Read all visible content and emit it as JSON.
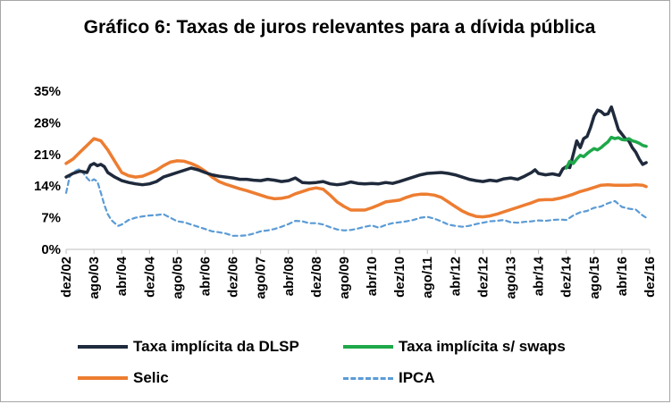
{
  "chart_data": {
    "type": "line",
    "title": "Gráfico 6: Taxas de juros relevantes para a dívida pública",
    "xlabel": "",
    "ylabel": "",
    "ylim": [
      0,
      35
    ],
    "y_ticks": [
      "0%",
      "7%",
      "14%",
      "21%",
      "28%",
      "35%"
    ],
    "y_tick_values": [
      0,
      7,
      14,
      21,
      28,
      35
    ],
    "x_range": [
      0,
      168
    ],
    "x_ticks": [
      {
        "label": "dez/02",
        "m": 0
      },
      {
        "label": "ago/03",
        "m": 8
      },
      {
        "label": "abr/04",
        "m": 16
      },
      {
        "label": "dez/04",
        "m": 24
      },
      {
        "label": "ago/05",
        "m": 32
      },
      {
        "label": "abr/06",
        "m": 40
      },
      {
        "label": "dez/06",
        "m": 48
      },
      {
        "label": "ago/07",
        "m": 56
      },
      {
        "label": "abr/08",
        "m": 64
      },
      {
        "label": "dez/08",
        "m": 72
      },
      {
        "label": "ago/09",
        "m": 80
      },
      {
        "label": "abr/10",
        "m": 88
      },
      {
        "label": "dez/10",
        "m": 96
      },
      {
        "label": "ago/11",
        "m": 104
      },
      {
        "label": "abr/12",
        "m": 112
      },
      {
        "label": "dez/12",
        "m": 120
      },
      {
        "label": "ago/13",
        "m": 128
      },
      {
        "label": "abr/14",
        "m": 136
      },
      {
        "label": "dez/14",
        "m": 144
      },
      {
        "label": "ago/15",
        "m": 152
      },
      {
        "label": "abr/16",
        "m": 160
      },
      {
        "label": "dez/16",
        "m": 168
      }
    ],
    "series": [
      {
        "name": "Taxa implícita da DLSP",
        "color": "#1f2a3c",
        "style": "solid",
        "points": [
          [
            0,
            16.0
          ],
          [
            2,
            16.8
          ],
          [
            4,
            17.3
          ],
          [
            6,
            17.0
          ],
          [
            7,
            18.6
          ],
          [
            8,
            19.0
          ],
          [
            9,
            18.5
          ],
          [
            10,
            18.8
          ],
          [
            11,
            18.3
          ],
          [
            12,
            17.0
          ],
          [
            14,
            16.0
          ],
          [
            16,
            15.2
          ],
          [
            18,
            14.8
          ],
          [
            20,
            14.5
          ],
          [
            22,
            14.3
          ],
          [
            24,
            14.5
          ],
          [
            26,
            15.0
          ],
          [
            28,
            16.0
          ],
          [
            30,
            16.5
          ],
          [
            32,
            17.0
          ],
          [
            34,
            17.5
          ],
          [
            36,
            18.0
          ],
          [
            38,
            17.6
          ],
          [
            40,
            17.0
          ],
          [
            42,
            16.5
          ],
          [
            44,
            16.2
          ],
          [
            46,
            16.0
          ],
          [
            48,
            15.8
          ],
          [
            50,
            15.5
          ],
          [
            52,
            15.5
          ],
          [
            54,
            15.3
          ],
          [
            56,
            15.2
          ],
          [
            58,
            15.5
          ],
          [
            60,
            15.3
          ],
          [
            62,
            15.0
          ],
          [
            64,
            15.2
          ],
          [
            66,
            15.8
          ],
          [
            68,
            14.8
          ],
          [
            70,
            14.7
          ],
          [
            72,
            14.8
          ],
          [
            74,
            15.0
          ],
          [
            76,
            14.5
          ],
          [
            78,
            14.3
          ],
          [
            80,
            14.5
          ],
          [
            82,
            14.9
          ],
          [
            84,
            14.6
          ],
          [
            86,
            14.5
          ],
          [
            88,
            14.6
          ],
          [
            90,
            14.5
          ],
          [
            92,
            14.8
          ],
          [
            94,
            14.6
          ],
          [
            96,
            15.0
          ],
          [
            98,
            15.5
          ],
          [
            100,
            16.0
          ],
          [
            102,
            16.5
          ],
          [
            104,
            16.8
          ],
          [
            106,
            16.9
          ],
          [
            108,
            17.0
          ],
          [
            110,
            16.8
          ],
          [
            112,
            16.5
          ],
          [
            114,
            16.0
          ],
          [
            116,
            15.5
          ],
          [
            118,
            15.2
          ],
          [
            120,
            15.0
          ],
          [
            122,
            15.3
          ],
          [
            124,
            15.1
          ],
          [
            126,
            15.6
          ],
          [
            128,
            15.8
          ],
          [
            130,
            15.5
          ],
          [
            132,
            16.2
          ],
          [
            134,
            17.0
          ],
          [
            135,
            17.6
          ],
          [
            136,
            16.8
          ],
          [
            138,
            16.5
          ],
          [
            140,
            16.7
          ],
          [
            142,
            16.4
          ],
          [
            143,
            17.8
          ],
          [
            144,
            18.3
          ],
          [
            145,
            18.1
          ],
          [
            146,
            21.0
          ],
          [
            147,
            24.0
          ],
          [
            148,
            22.5
          ],
          [
            149,
            24.5
          ],
          [
            150,
            25.0
          ],
          [
            151,
            27.0
          ],
          [
            152,
            29.5
          ],
          [
            153,
            30.8
          ],
          [
            154,
            30.5
          ],
          [
            155,
            29.8
          ],
          [
            156,
            30.0
          ],
          [
            157,
            31.5
          ],
          [
            158,
            29.0
          ],
          [
            159,
            26.5
          ],
          [
            160,
            25.5
          ],
          [
            161,
            24.5
          ],
          [
            162,
            24.0
          ],
          [
            163,
            22.5
          ],
          [
            164,
            21.5
          ],
          [
            165,
            20.0
          ],
          [
            166,
            18.8
          ],
          [
            167,
            19.2
          ]
        ]
      },
      {
        "name": "Taxa implícita s/ swaps",
        "color": "#1ea84a",
        "style": "solid",
        "points": [
          [
            144,
            18.0
          ],
          [
            145,
            19.5
          ],
          [
            146,
            19.0
          ],
          [
            147,
            20.0
          ],
          [
            148,
            20.8
          ],
          [
            149,
            20.5
          ],
          [
            150,
            21.2
          ],
          [
            151,
            21.8
          ],
          [
            152,
            22.3
          ],
          [
            153,
            22.0
          ],
          [
            154,
            22.5
          ],
          [
            155,
            23.2
          ],
          [
            156,
            23.8
          ],
          [
            157,
            24.8
          ],
          [
            158,
            24.5
          ],
          [
            159,
            24.7
          ],
          [
            160,
            24.3
          ],
          [
            161,
            24.2
          ],
          [
            162,
            24.5
          ],
          [
            163,
            24.0
          ],
          [
            164,
            23.8
          ],
          [
            165,
            23.5
          ],
          [
            166,
            23.0
          ],
          [
            167,
            22.8
          ]
        ]
      },
      {
        "name": "Selic",
        "color": "#ed7d31",
        "style": "solid",
        "points": [
          [
            0,
            19.0
          ],
          [
            2,
            20.0
          ],
          [
            4,
            21.5
          ],
          [
            6,
            23.0
          ],
          [
            8,
            24.5
          ],
          [
            10,
            24.0
          ],
          [
            12,
            22.0
          ],
          [
            14,
            19.5
          ],
          [
            16,
            17.0
          ],
          [
            18,
            16.3
          ],
          [
            20,
            16.0
          ],
          [
            22,
            16.2
          ],
          [
            24,
            16.8
          ],
          [
            26,
            17.5
          ],
          [
            28,
            18.5
          ],
          [
            30,
            19.3
          ],
          [
            32,
            19.6
          ],
          [
            34,
            19.5
          ],
          [
            36,
            19.0
          ],
          [
            38,
            18.3
          ],
          [
            40,
            17.3
          ],
          [
            42,
            16.0
          ],
          [
            44,
            15.0
          ],
          [
            46,
            14.4
          ],
          [
            48,
            13.9
          ],
          [
            50,
            13.4
          ],
          [
            52,
            13.0
          ],
          [
            54,
            12.5
          ],
          [
            56,
            12.0
          ],
          [
            58,
            11.5
          ],
          [
            60,
            11.2
          ],
          [
            62,
            11.3
          ],
          [
            64,
            11.6
          ],
          [
            66,
            12.3
          ],
          [
            68,
            12.8
          ],
          [
            70,
            13.3
          ],
          [
            72,
            13.6
          ],
          [
            74,
            13.3
          ],
          [
            76,
            12.0
          ],
          [
            78,
            10.5
          ],
          [
            80,
            9.5
          ],
          [
            82,
            8.7
          ],
          [
            84,
            8.7
          ],
          [
            86,
            8.7
          ],
          [
            88,
            9.2
          ],
          [
            90,
            9.8
          ],
          [
            92,
            10.5
          ],
          [
            94,
            10.7
          ],
          [
            96,
            10.9
          ],
          [
            98,
            11.5
          ],
          [
            100,
            12.0
          ],
          [
            102,
            12.2
          ],
          [
            104,
            12.2
          ],
          [
            106,
            12.0
          ],
          [
            108,
            11.5
          ],
          [
            110,
            10.5
          ],
          [
            112,
            9.5
          ],
          [
            114,
            8.5
          ],
          [
            116,
            7.8
          ],
          [
            118,
            7.3
          ],
          [
            120,
            7.2
          ],
          [
            122,
            7.4
          ],
          [
            124,
            7.8
          ],
          [
            126,
            8.3
          ],
          [
            128,
            8.8
          ],
          [
            130,
            9.3
          ],
          [
            132,
            9.8
          ],
          [
            134,
            10.3
          ],
          [
            136,
            10.9
          ],
          [
            138,
            11.0
          ],
          [
            140,
            11.0
          ],
          [
            142,
            11.3
          ],
          [
            144,
            11.7
          ],
          [
            146,
            12.2
          ],
          [
            148,
            12.8
          ],
          [
            150,
            13.2
          ],
          [
            152,
            13.7
          ],
          [
            154,
            14.2
          ],
          [
            156,
            14.3
          ],
          [
            158,
            14.2
          ],
          [
            160,
            14.2
          ],
          [
            162,
            14.2
          ],
          [
            164,
            14.3
          ],
          [
            166,
            14.2
          ],
          [
            167,
            13.9
          ]
        ]
      },
      {
        "name": "IPCA",
        "color": "#5b9bd5",
        "style": "dashed",
        "points": [
          [
            0,
            12.5
          ],
          [
            1,
            16.0
          ],
          [
            2,
            17.0
          ],
          [
            3,
            17.5
          ],
          [
            4,
            17.8
          ],
          [
            5,
            16.8
          ],
          [
            6,
            15.8
          ],
          [
            7,
            15.0
          ],
          [
            8,
            15.5
          ],
          [
            9,
            15.0
          ],
          [
            10,
            12.5
          ],
          [
            11,
            9.8
          ],
          [
            12,
            7.8
          ],
          [
            13,
            6.5
          ],
          [
            14,
            5.8
          ],
          [
            15,
            5.2
          ],
          [
            16,
            5.5
          ],
          [
            18,
            6.5
          ],
          [
            20,
            7.0
          ],
          [
            22,
            7.3
          ],
          [
            24,
            7.5
          ],
          [
            26,
            7.6
          ],
          [
            28,
            7.8
          ],
          [
            30,
            7.0
          ],
          [
            32,
            6.2
          ],
          [
            34,
            6.0
          ],
          [
            36,
            5.5
          ],
          [
            38,
            5.0
          ],
          [
            40,
            4.5
          ],
          [
            42,
            4.0
          ],
          [
            44,
            3.8
          ],
          [
            46,
            3.5
          ],
          [
            48,
            3.0
          ],
          [
            50,
            3.0
          ],
          [
            52,
            3.1
          ],
          [
            54,
            3.5
          ],
          [
            56,
            4.0
          ],
          [
            58,
            4.2
          ],
          [
            60,
            4.5
          ],
          [
            62,
            5.0
          ],
          [
            64,
            5.6
          ],
          [
            66,
            6.3
          ],
          [
            68,
            6.2
          ],
          [
            70,
            5.8
          ],
          [
            72,
            5.8
          ],
          [
            74,
            5.5
          ],
          [
            76,
            4.9
          ],
          [
            78,
            4.4
          ],
          [
            80,
            4.2
          ],
          [
            82,
            4.3
          ],
          [
            84,
            4.6
          ],
          [
            86,
            5.0
          ],
          [
            88,
            5.3
          ],
          [
            90,
            4.8
          ],
          [
            92,
            5.4
          ],
          [
            94,
            5.8
          ],
          [
            96,
            6.0
          ],
          [
            98,
            6.2
          ],
          [
            100,
            6.5
          ],
          [
            102,
            7.0
          ],
          [
            104,
            7.2
          ],
          [
            106,
            6.8
          ],
          [
            108,
            6.2
          ],
          [
            110,
            5.5
          ],
          [
            112,
            5.2
          ],
          [
            114,
            5.0
          ],
          [
            116,
            5.2
          ],
          [
            118,
            5.6
          ],
          [
            120,
            5.9
          ],
          [
            122,
            6.2
          ],
          [
            124,
            6.3
          ],
          [
            126,
            6.5
          ],
          [
            128,
            6.0
          ],
          [
            130,
            5.9
          ],
          [
            132,
            6.1
          ],
          [
            134,
            6.2
          ],
          [
            136,
            6.4
          ],
          [
            138,
            6.3
          ],
          [
            140,
            6.5
          ],
          [
            142,
            6.6
          ],
          [
            144,
            6.5
          ],
          [
            146,
            7.5
          ],
          [
            148,
            8.2
          ],
          [
            150,
            8.5
          ],
          [
            152,
            9.2
          ],
          [
            154,
            9.5
          ],
          [
            156,
            10.2
          ],
          [
            158,
            10.7
          ],
          [
            160,
            9.4
          ],
          [
            162,
            9.0
          ],
          [
            164,
            8.8
          ],
          [
            166,
            7.5
          ],
          [
            167,
            7.0
          ]
        ]
      }
    ]
  }
}
